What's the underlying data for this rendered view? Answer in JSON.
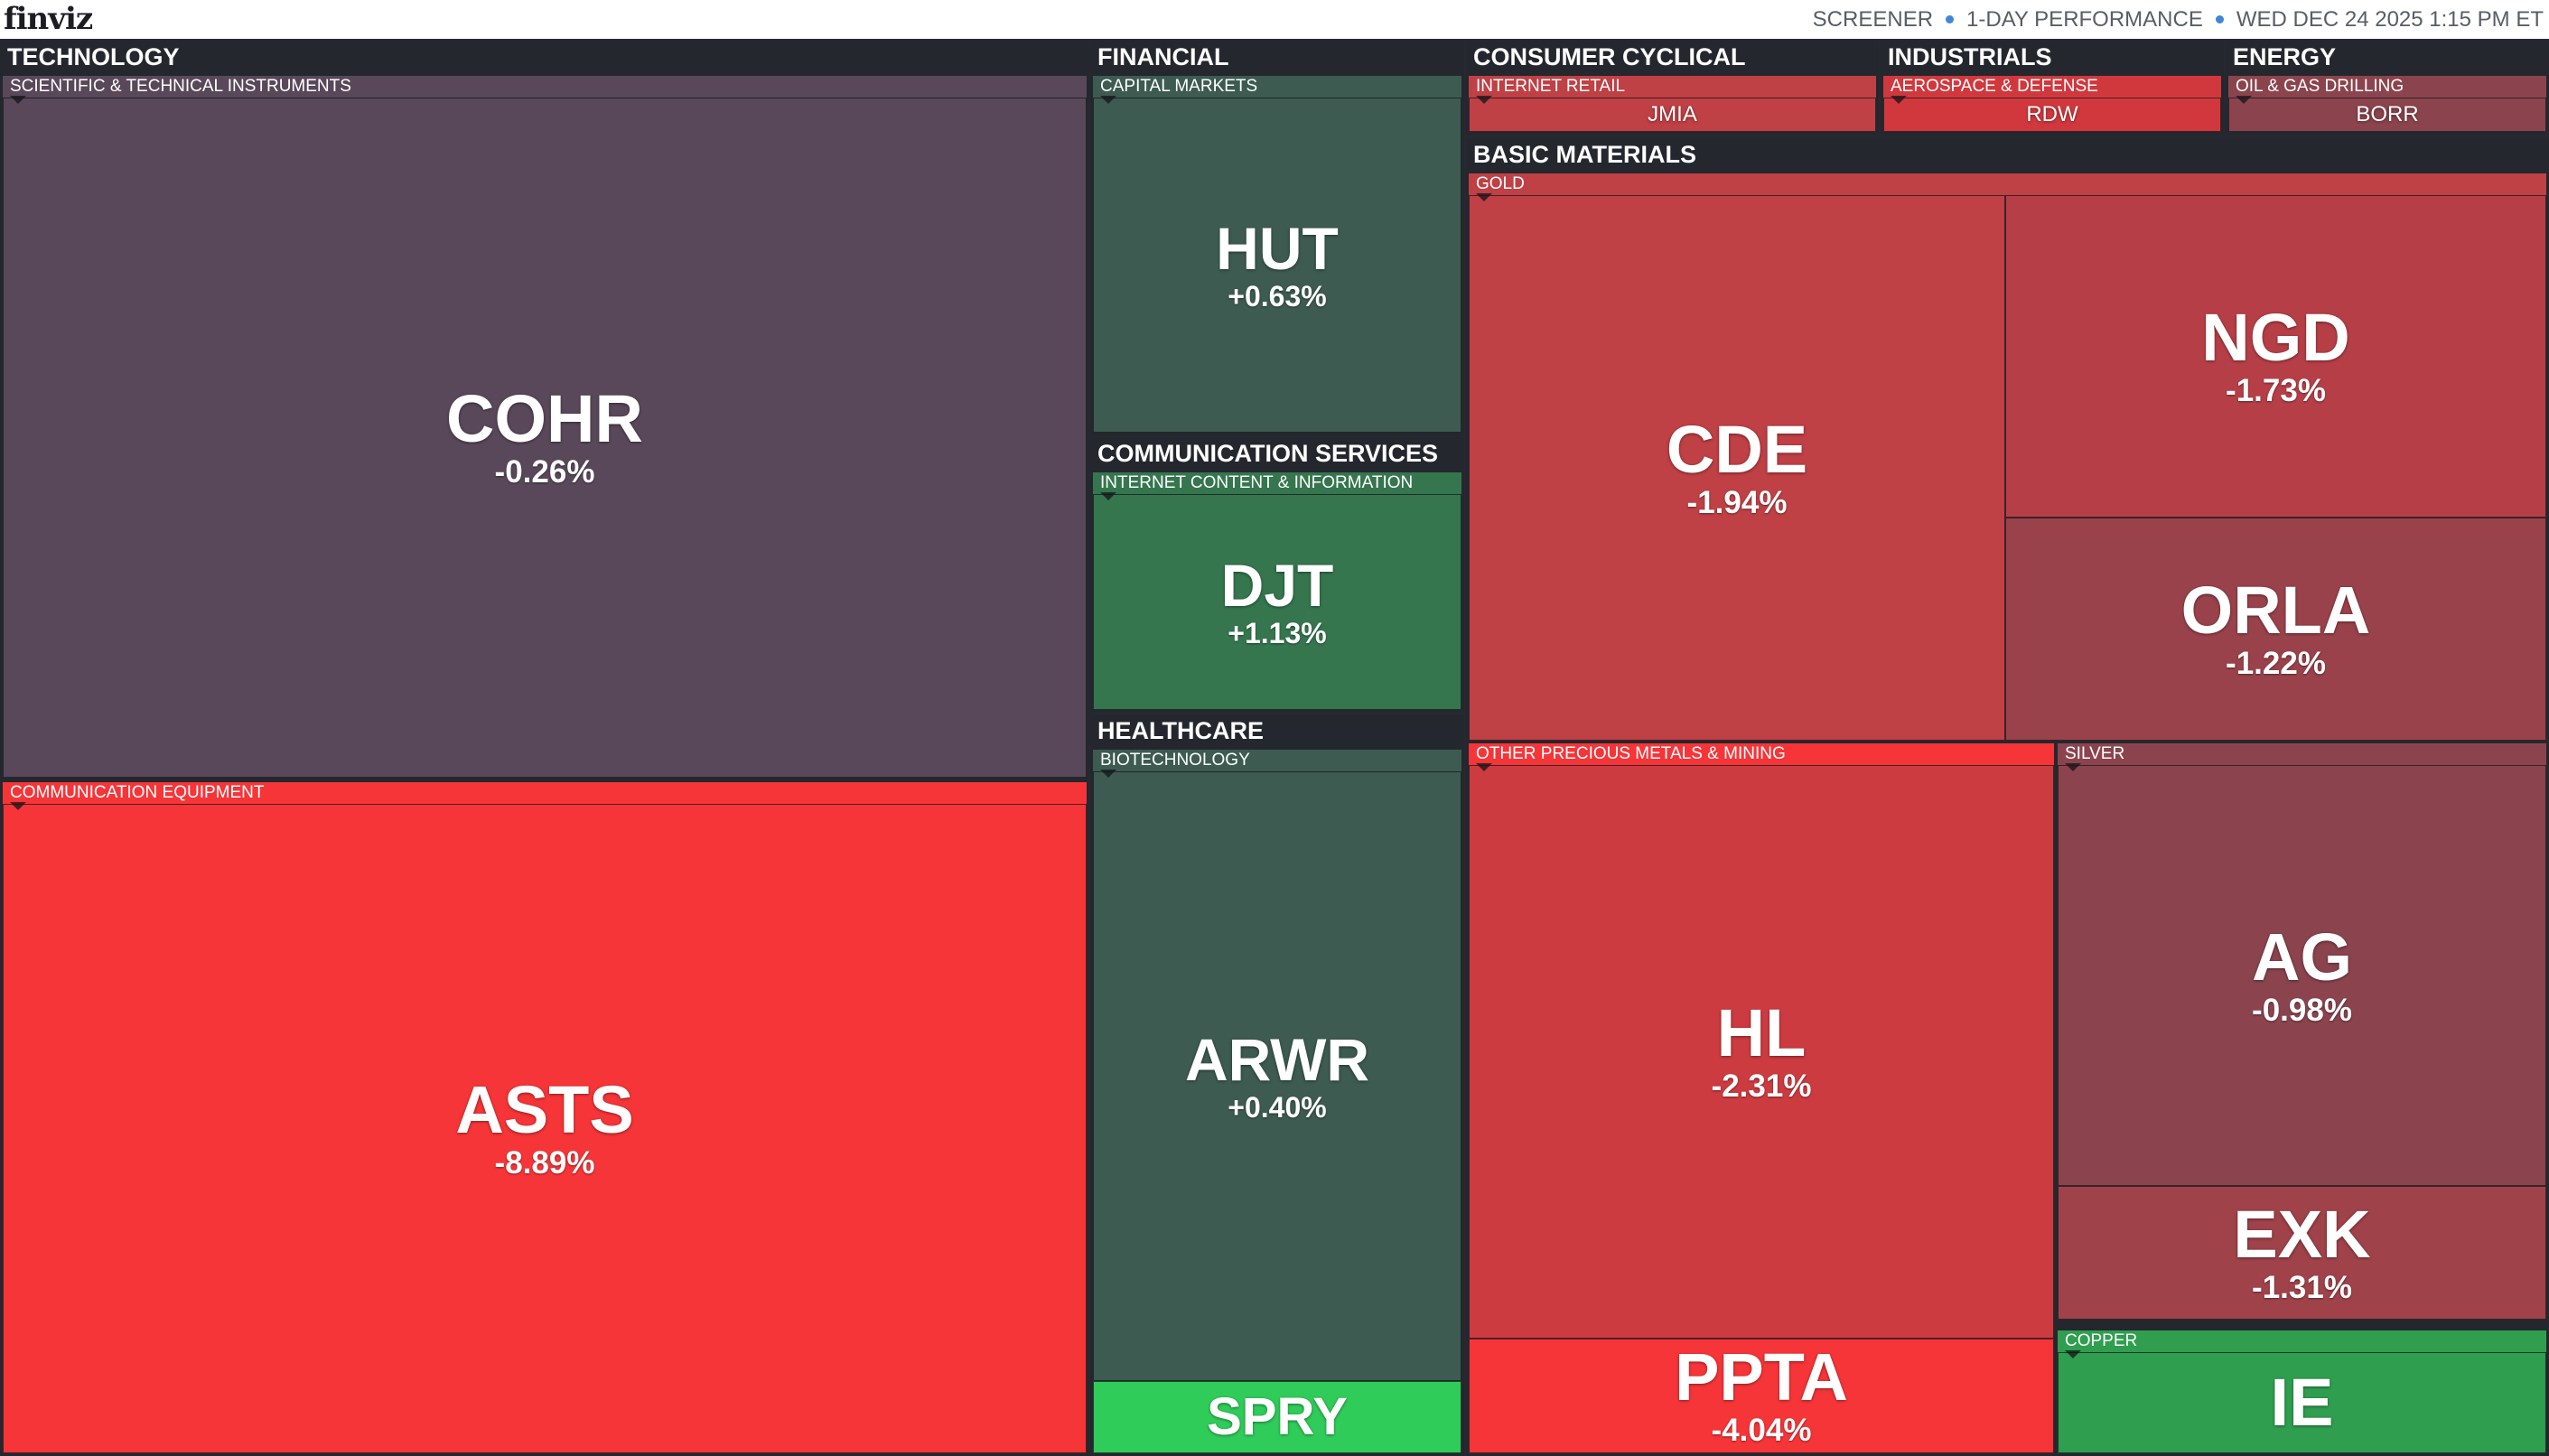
{
  "header": {
    "logo": "finviz",
    "screener": "SCREENER",
    "performance": "1-DAY PERFORMANCE",
    "datetime": "WED DEC 24 2025 1:15 PM ET"
  },
  "colors": {
    "gain_strong": "#30cc5a",
    "gain_mid": "#2f9e4f",
    "gain_light": "#35764e",
    "gain_faint": "#3d5b51",
    "neutral_negative": "#59485a",
    "loss_light": "#8b444e",
    "loss_mid": "#bf4045",
    "loss_strong": "#f63538"
  },
  "sectors": {
    "technology": {
      "title": "TECHNOLOGY",
      "scientific": {
        "title": "SCIENTIFIC & TECHNICAL INSTRUMENTS",
        "cohr": {
          "ticker": "COHR",
          "change": "-0.26%"
        }
      },
      "commequip": {
        "title": "COMMUNICATION EQUIPMENT",
        "asts": {
          "ticker": "ASTS",
          "change": "-8.89%"
        }
      }
    },
    "financial": {
      "title": "FINANCIAL",
      "capital_markets": {
        "title": "CAPITAL MARKETS",
        "hut": {
          "ticker": "HUT",
          "change": "+0.63%"
        }
      }
    },
    "communication_services": {
      "title": "COMMUNICATION SERVICES",
      "internet_content": {
        "title": "INTERNET CONTENT & INFORMATION",
        "djt": {
          "ticker": "DJT",
          "change": "+1.13%"
        }
      }
    },
    "healthcare": {
      "title": "HEALTHCARE",
      "biotech": {
        "title": "BIOTECHNOLOGY",
        "arwr": {
          "ticker": "ARWR",
          "change": "+0.40%"
        },
        "spry": {
          "ticker": "SPRY"
        }
      }
    },
    "consumer_cyclical": {
      "title": "CONSUMER CYCLICAL",
      "internet_retail": {
        "title": "INTERNET RETAIL",
        "jmia": {
          "ticker": "JMIA"
        }
      }
    },
    "industrials": {
      "title": "INDUSTRIALS",
      "aerospace": {
        "title": "AEROSPACE & DEFENSE",
        "rdw": {
          "ticker": "RDW"
        }
      }
    },
    "energy": {
      "title": "ENERGY",
      "oil_gas": {
        "title": "OIL & GAS DRILLING",
        "borr": {
          "ticker": "BORR"
        }
      }
    },
    "basic_materials": {
      "title": "BASIC MATERIALS",
      "gold": {
        "title": "GOLD",
        "cde": {
          "ticker": "CDE",
          "change": "-1.94%"
        },
        "ngd": {
          "ticker": "NGD",
          "change": "-1.73%"
        },
        "orla": {
          "ticker": "ORLA",
          "change": "-1.22%"
        }
      },
      "other_precious": {
        "title": "OTHER PRECIOUS METALS & MINING",
        "hl": {
          "ticker": "HL",
          "change": "-2.31%"
        },
        "ppta": {
          "ticker": "PPTA",
          "change": "-4.04%"
        }
      },
      "silver": {
        "title": "SILVER",
        "ag": {
          "ticker": "AG",
          "change": "-0.98%"
        },
        "exk": {
          "ticker": "EXK",
          "change": "-1.31%"
        }
      },
      "copper": {
        "title": "COPPER",
        "ie": {
          "ticker": "IE"
        }
      }
    }
  }
}
